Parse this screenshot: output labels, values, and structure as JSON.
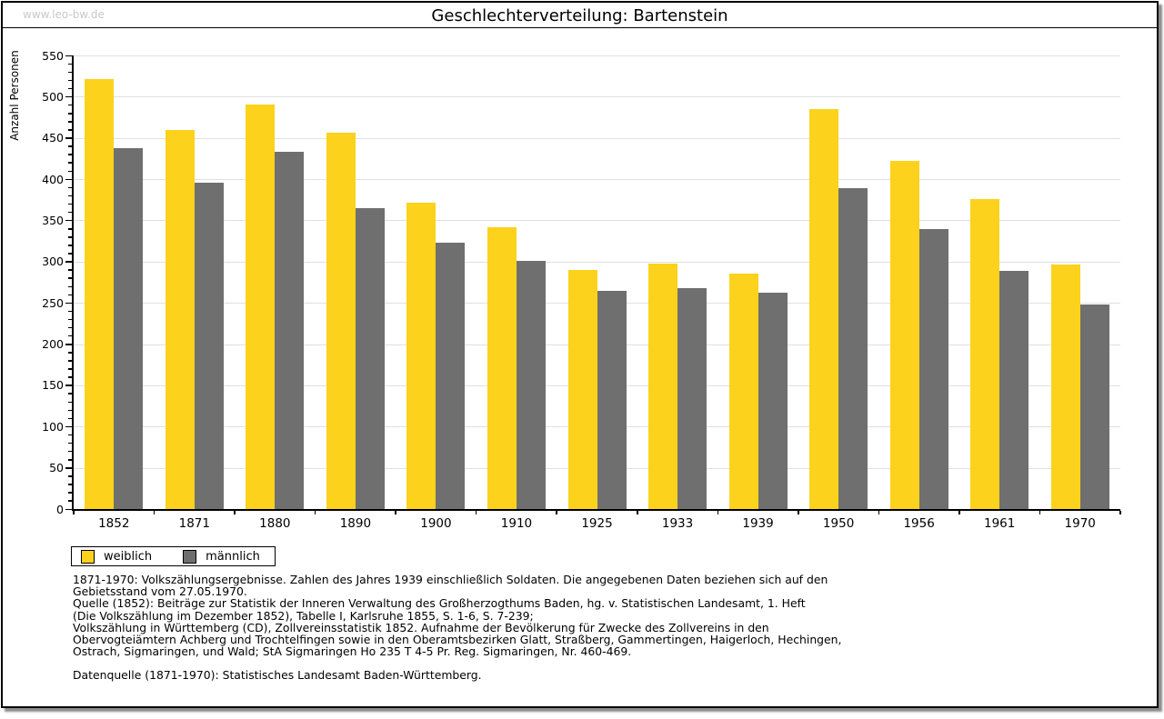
{
  "watermark": "www.leo-bw.de",
  "title": "Geschlechterverteilung: Bartenstein",
  "chart_data": {
    "type": "bar",
    "title": "Geschlechterverteilung: Bartenstein",
    "xlabel": "",
    "ylabel": "Anzahl Personen",
    "ylim": [
      0,
      550
    ],
    "ytick_step": 50,
    "ytick_minor_step": 10,
    "grid": true,
    "legend_position": "bottom-left",
    "categories": [
      "1852",
      "1871",
      "1880",
      "1890",
      "1900",
      "1910",
      "1925",
      "1933",
      "1939",
      "1950",
      "1956",
      "1961",
      "1970"
    ],
    "series": [
      {
        "name": "weiblich",
        "color": "#fcd21c",
        "values": [
          521,
          460,
          490,
          456,
          371,
          342,
          290,
          298,
          286,
          485,
          422,
          376,
          296
        ]
      },
      {
        "name": "männlich",
        "color": "#6f6f6f",
        "values": [
          438,
          396,
          433,
          365,
          323,
          301,
          265,
          268,
          262,
          389,
          339,
          289,
          248
        ]
      }
    ]
  },
  "footnotes": {
    "lines": [
      "1871-1970: Volkszählungsergebnisse. Zahlen des Jahres 1939 einschließlich Soldaten. Die angegebenen Daten beziehen sich auf den",
      "Gebietsstand vom 27.05.1970.",
      "Quelle (1852): Beiträge zur Statistik der Inneren Verwaltung des Großherzogthums Baden, hg. v. Statistischen Landesamt, 1. Heft",
      "(Die Volkszählung im Dezember 1852), Tabelle I, Karlsruhe 1855, S. 1-6, S. 7-239;",
      "Volkszählung in Württemberg (CD), Zollvereinsstatistik 1852. Aufnahme der Bevölkerung für Zwecke des Zollvereins in den",
      "Obervogteiämtern Achberg und Trochtelfingen sowie in den Oberamtsbezirken Glatt, Straßberg, Gammertingen, Haigerloch, Hechingen,",
      "Ostrach, Sigmaringen, und Wald; StA Sigmaringen Ho 235 T 4-5 Pr. Reg. Sigmaringen, Nr. 460-469."
    ],
    "datasource": "Datenquelle (1871-1970): Statistisches Landesamt Baden-Württemberg."
  },
  "colors": {
    "weiblich": "#fcd21c",
    "männlich": "#6f6f6f",
    "gridline": "#e0e0e0",
    "watermark": "#c9c9c9",
    "frame_border": "#000000",
    "shadow": "#8c8c8c"
  }
}
